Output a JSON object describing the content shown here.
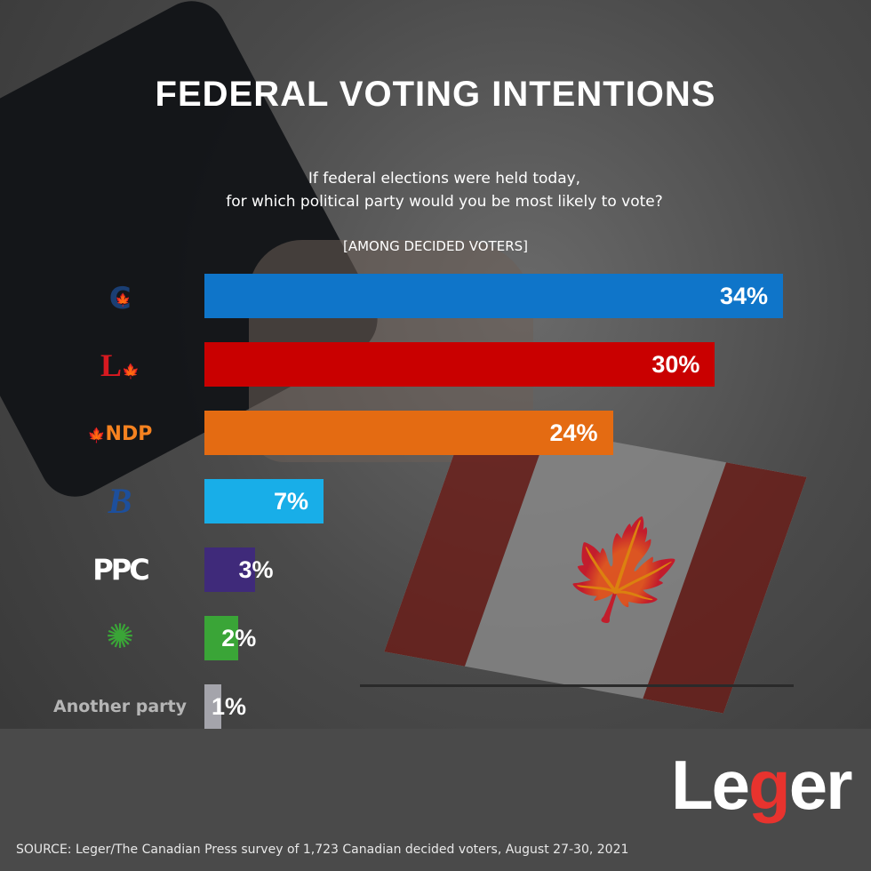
{
  "title": "FEDERAL VOTING INTENTIONS",
  "question_line1": "If federal elections were held today,",
  "question_line2": "for which political party would you be most likely to vote?",
  "subtitle": "[AMONG DECIDED VOTERS]",
  "source": "SOURCE: Leger/The Canadian Press survey of 1,723 Canadian decided voters, August 27-30, 2021",
  "brand": {
    "text": "Leger",
    "accent": "#e8332e"
  },
  "chart_data": {
    "type": "bar",
    "orientation": "horizontal",
    "categories": [
      "Conservative",
      "Liberal",
      "NDP",
      "Bloc Québécois",
      "PPC",
      "Green",
      "Another party"
    ],
    "category_labels": {
      "ndp": "NDP",
      "ppc": "PPC",
      "other": "Another party"
    },
    "values": [
      34,
      30,
      24,
      7,
      3,
      2,
      1
    ],
    "value_labels": [
      "34%",
      "30%",
      "24%",
      "7%",
      "3%",
      "2%",
      "1%"
    ],
    "colors": [
      "#0f75c9",
      "#c90000",
      "#e46b12",
      "#18aee8",
      "#3f2a7a",
      "#3aa537",
      "#a4a4ab"
    ],
    "xlim": [
      0,
      34
    ],
    "grid": false
  }
}
